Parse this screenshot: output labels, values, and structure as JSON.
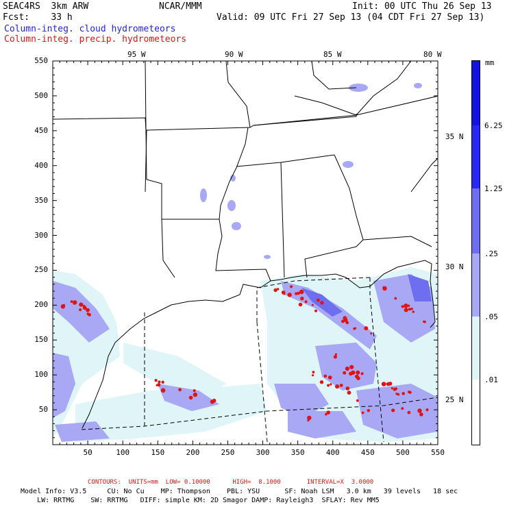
{
  "header": {
    "model": "SEAC4RS  3km ARW",
    "org": "NCAR/MMM",
    "init": "Init: 00 UTC Thu 26 Sep 13",
    "fcst": "Fcst:    33 h",
    "valid": "Valid: 09 UTC Fri 27 Sep 13 (04 CDT Fri 27 Sep 13)",
    "legend_cloud": "Column-integ. cloud hydrometeors",
    "legend_precip": "Column-integ. precip. hydrometeors",
    "cloud_color": "#1f1fd6",
    "precip_color": "#e01414"
  },
  "axes": {
    "x_ticks": [
      "50",
      "100",
      "150",
      "200",
      "250",
      "300",
      "350",
      "400",
      "450",
      "500",
      "550"
    ],
    "y_ticks": [
      "550",
      "500",
      "450",
      "400",
      "350",
      "300",
      "250",
      "200",
      "150",
      "100",
      "50"
    ],
    "lon_labels": [
      "95 W",
      "90 W",
      "85 W",
      "80 W"
    ],
    "lat_labels": [
      "35 N",
      "30 N",
      "25 N"
    ]
  },
  "colorbar": {
    "unit": "mm",
    "labels": [
      "6.25",
      "1.25",
      ".25",
      ".05",
      ".01"
    ],
    "colors": [
      "#1414e0",
      "#2828f0",
      "#6e6ef0",
      "#a8a8f4",
      "#dff5f8",
      "#ffffff"
    ]
  },
  "footer": {
    "contours": "CONTOURS:  UNITS=mm  LOW= 0.10000      HIGH=  8.1000       INTERVAL=X  3.0000",
    "line1": "Model Info: V3.5     CU: No Cu    MP: Thompson    PBL: YSU      SF: Noah LSM   3.0 km   39 levels   18 sec",
    "line2": "    LW: RRTMG    SW: RRTMG   DIFF: simple KM: 2D Smagor DAMP: Rayleigh3  SFLAY: Rev MM5"
  }
}
